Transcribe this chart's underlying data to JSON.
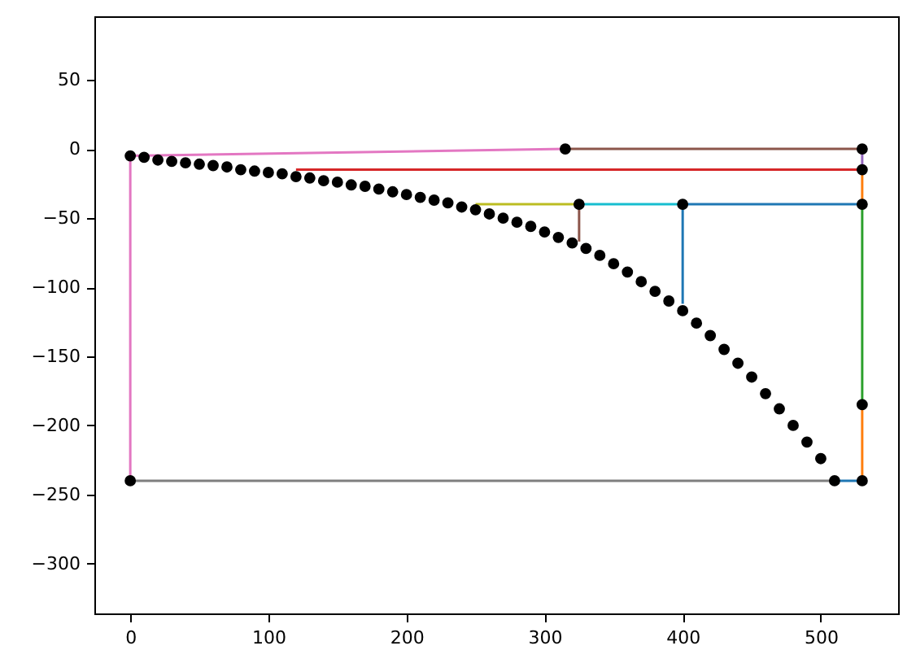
{
  "chart_data": {
    "type": "line",
    "xlim": [
      -26,
      556
    ],
    "ylim": [
      -336,
      96
    ],
    "xticks": [
      0,
      100,
      200,
      300,
      400,
      500
    ],
    "yticks": [
      -300,
      -250,
      -200,
      -150,
      -100,
      -50,
      0,
      50
    ],
    "grid": false,
    "line_style": "solid",
    "series": [
      {
        "color": "#e377c2",
        "x": [
          0,
          315
        ],
        "values": [
          -5,
          0
        ]
      },
      {
        "color": "#e377c2",
        "x": [
          0,
          0
        ],
        "values": [
          -5,
          -240
        ]
      },
      {
        "color": "#8c564b",
        "x": [
          315,
          530
        ],
        "values": [
          0,
          0
        ]
      },
      {
        "color": "#9467bd",
        "x": [
          530,
          530
        ],
        "values": [
          0,
          -15
        ]
      },
      {
        "color": "#d62728",
        "x": [
          120,
          530
        ],
        "values": [
          -15,
          -15
        ]
      },
      {
        "color": "#ff7f0e",
        "x": [
          530,
          530
        ],
        "values": [
          -15,
          -40
        ]
      },
      {
        "color": "#bcbd22",
        "x": [
          250,
          325
        ],
        "values": [
          -40,
          -40
        ]
      },
      {
        "color": "#8c564b",
        "x": [
          325,
          325
        ],
        "values": [
          -40,
          -67
        ]
      },
      {
        "color": "#17becf",
        "x": [
          325,
          400
        ],
        "values": [
          -40,
          -40
        ]
      },
      {
        "color": "#1f77b4",
        "x": [
          400,
          530
        ],
        "values": [
          -40,
          -40
        ]
      },
      {
        "color": "#1f77b4",
        "x": [
          400,
          400
        ],
        "values": [
          -40,
          -112
        ]
      },
      {
        "color": "#2ca02c",
        "x": [
          530,
          530
        ],
        "values": [
          -40,
          -185
        ]
      },
      {
        "color": "#ff7f0e",
        "x": [
          530,
          530
        ],
        "values": [
          -185,
          -240
        ]
      },
      {
        "color": "#7f7f7f",
        "x": [
          0,
          510
        ],
        "values": [
          -240,
          -240
        ]
      },
      {
        "color": "#1f77b4",
        "x": [
          510,
          530
        ],
        "values": [
          -240,
          -240
        ]
      },
      {
        "type": "scatter",
        "marker": "circle",
        "color": "#000000",
        "x": [
          315,
          530,
          530,
          325,
          400,
          530,
          530,
          530,
          0
        ],
        "values": [
          0,
          0,
          -15,
          -40,
          -40,
          -40,
          -185,
          -240,
          -240
        ]
      },
      {
        "type": "scatter",
        "marker": "circle",
        "color": "#000000",
        "x": [
          0,
          10,
          20,
          30,
          40,
          50,
          60,
          70,
          80,
          90,
          100,
          110,
          120,
          130,
          140,
          150,
          160,
          170,
          180,
          190,
          200,
          210,
          220,
          230,
          240,
          250,
          260,
          270,
          280,
          290,
          300,
          310,
          320,
          330,
          340,
          350,
          360,
          370,
          380,
          390,
          400,
          410,
          420,
          430,
          440,
          450,
          460,
          470,
          480,
          490,
          500,
          510
        ],
        "values": [
          -5,
          -6,
          -8,
          -9,
          -10,
          -11,
          -12,
          -13,
          -15,
          -16,
          -17,
          -18,
          -20,
          -21,
          -23,
          -24,
          -26,
          -27,
          -29,
          -31,
          -33,
          -35,
          -37,
          -39,
          -42,
          -44,
          -47,
          -50,
          -53,
          -56,
          -60,
          -64,
          -68,
          -72,
          -77,
          -83,
          -89,
          -96,
          -103,
          -110,
          -117,
          -126,
          -135,
          -145,
          -155,
          -165,
          -177,
          -188,
          -200,
          -212,
          -224,
          -240
        ]
      }
    ]
  }
}
